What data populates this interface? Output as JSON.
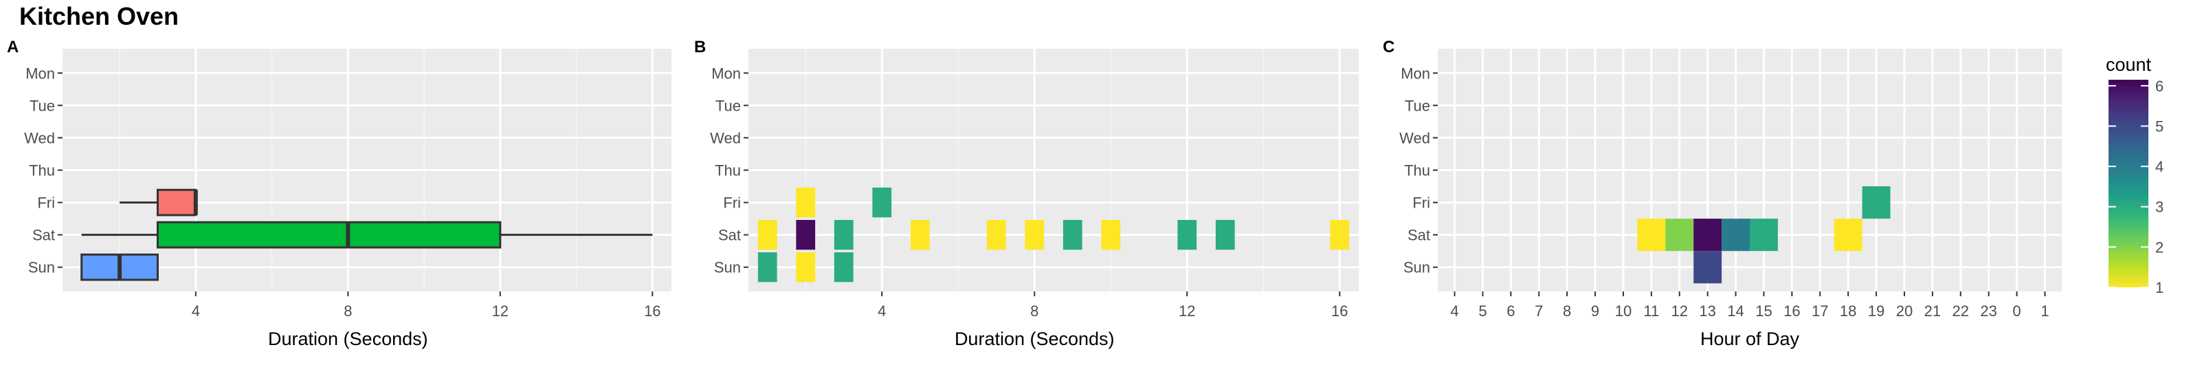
{
  "title": "Kitchen Oven",
  "chart_data": [
    {
      "panel": "A",
      "type": "boxplot",
      "xlabel": "Duration (Seconds)",
      "ylabel": "",
      "x_ticks": [
        4,
        8,
        12,
        16
      ],
      "xlim": [
        0.5,
        16.5
      ],
      "categories": [
        "Mon",
        "Tue",
        "Wed",
        "Thu",
        "Fri",
        "Sat",
        "Sun"
      ],
      "grid": true,
      "boxes": [
        {
          "day": "Fri",
          "min": 2,
          "q1": 3,
          "median": 4,
          "q3": 4,
          "max": 4,
          "color": "#F8766D"
        },
        {
          "day": "Sat",
          "min": 1,
          "q1": 3,
          "median": 8,
          "q3": 12,
          "max": 16,
          "color": "#00BA38"
        },
        {
          "day": "Sun",
          "min": 1,
          "q1": 1,
          "median": 2,
          "q3": 3,
          "max": 3,
          "color": "#619CFF"
        }
      ]
    },
    {
      "panel": "B",
      "type": "heatmap",
      "xlabel": "Duration (Seconds)",
      "ylabel": "",
      "x_ticks": [
        4,
        8,
        12,
        16
      ],
      "xlim": [
        0.5,
        16.5
      ],
      "categories": [
        "Mon",
        "Tue",
        "Wed",
        "Thu",
        "Fri",
        "Sat",
        "Sun"
      ],
      "grid": true,
      "tiles": [
        {
          "x": 2,
          "day": "Fri",
          "count": 1
        },
        {
          "x": 4,
          "day": "Fri",
          "count": 3
        },
        {
          "x": 1,
          "day": "Sat",
          "count": 1
        },
        {
          "x": 2,
          "day": "Sat",
          "count": 6
        },
        {
          "x": 3,
          "day": "Sat",
          "count": 3
        },
        {
          "x": 5,
          "day": "Sat",
          "count": 1
        },
        {
          "x": 7,
          "day": "Sat",
          "count": 1
        },
        {
          "x": 8,
          "day": "Sat",
          "count": 1
        },
        {
          "x": 9,
          "day": "Sat",
          "count": 3
        },
        {
          "x": 10,
          "day": "Sat",
          "count": 1
        },
        {
          "x": 12,
          "day": "Sat",
          "count": 3
        },
        {
          "x": 13,
          "day": "Sat",
          "count": 3
        },
        {
          "x": 16,
          "day": "Sat",
          "count": 1
        },
        {
          "x": 1,
          "day": "Sun",
          "count": 3
        },
        {
          "x": 2,
          "day": "Sun",
          "count": 1
        },
        {
          "x": 3,
          "day": "Sun",
          "count": 3
        }
      ]
    },
    {
      "panel": "C",
      "type": "heatmap",
      "xlabel": "Hour of Day",
      "ylabel": "",
      "x_ticks": [
        "4",
        "5",
        "6",
        "7",
        "8",
        "9",
        "10",
        "11",
        "12",
        "13",
        "14",
        "15",
        "16",
        "17",
        "18",
        "19",
        "20",
        "21",
        "22",
        "23",
        "0",
        "1"
      ],
      "categories": [
        "Mon",
        "Tue",
        "Wed",
        "Thu",
        "Fri",
        "Sat",
        "Sun"
      ],
      "grid": true,
      "tiles": [
        {
          "hour": "19",
          "day": "Fri",
          "count": 3
        },
        {
          "hour": "11",
          "day": "Sat",
          "count": 1
        },
        {
          "hour": "12",
          "day": "Sat",
          "count": 2
        },
        {
          "hour": "13",
          "day": "Sat",
          "count": 6
        },
        {
          "hour": "14",
          "day": "Sat",
          "count": 4
        },
        {
          "hour": "15",
          "day": "Sat",
          "count": 3
        },
        {
          "hour": "18",
          "day": "Sat",
          "count": 1
        },
        {
          "hour": "13",
          "day": "Sun",
          "count": 5
        }
      ]
    }
  ],
  "legend": {
    "title": "count",
    "ticks": [
      6,
      5,
      4,
      3,
      2,
      1
    ],
    "range": [
      1,
      6.15
    ],
    "scale": "viridis"
  }
}
